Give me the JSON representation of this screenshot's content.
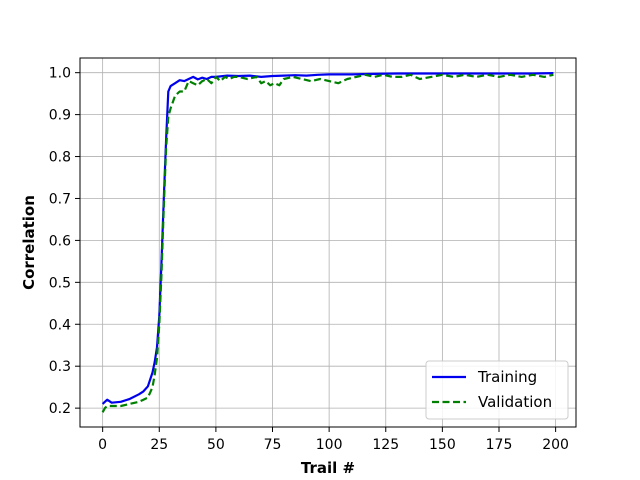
{
  "chart_data": {
    "type": "line",
    "title": "",
    "xlabel": "Trail #",
    "ylabel": "Correlation",
    "xlim": [
      -10,
      209
    ],
    "ylim": [
      0.155,
      1.035
    ],
    "xticks": [
      0,
      25,
      50,
      75,
      100,
      125,
      150,
      175,
      200
    ],
    "yticks": [
      0.2,
      0.3,
      0.4,
      0.5,
      0.6,
      0.7,
      0.8,
      0.9,
      1.0
    ],
    "xtick_labels": [
      "0",
      "25",
      "50",
      "75",
      "100",
      "125",
      "150",
      "175",
      "200"
    ],
    "ytick_labels": [
      "0.2",
      "0.3",
      "0.4",
      "0.5",
      "0.6",
      "0.7",
      "0.8",
      "0.9",
      "1.0"
    ],
    "grid": true,
    "legend": "lower-right",
    "series": [
      {
        "name": "Training",
        "color": "#0000ee",
        "style": "solid",
        "x": [
          0,
          2,
          4,
          8,
          12,
          16,
          18,
          20,
          22,
          23,
          24,
          25,
          26,
          27,
          28,
          29,
          30,
          32,
          34,
          36,
          38,
          40,
          42,
          44,
          46,
          48,
          50,
          55,
          60,
          65,
          70,
          75,
          80,
          85,
          90,
          95,
          100,
          110,
          120,
          130,
          140,
          150,
          160,
          170,
          180,
          190,
          199
        ],
        "y": [
          0.21,
          0.22,
          0.213,
          0.215,
          0.222,
          0.233,
          0.24,
          0.252,
          0.285,
          0.31,
          0.345,
          0.42,
          0.55,
          0.7,
          0.84,
          0.955,
          0.968,
          0.975,
          0.982,
          0.98,
          0.985,
          0.99,
          0.984,
          0.988,
          0.985,
          0.99,
          0.99,
          0.993,
          0.992,
          0.993,
          0.99,
          0.992,
          0.993,
          0.994,
          0.993,
          0.995,
          0.996,
          0.996,
          0.997,
          0.998,
          0.998,
          0.998,
          0.998,
          0.998,
          0.998,
          0.998,
          0.999
        ]
      },
      {
        "name": "Validation",
        "color": "#008000",
        "style": "dashed",
        "x": [
          0,
          1,
          2,
          4,
          8,
          12,
          16,
          18,
          20,
          22,
          23,
          24,
          25,
          26,
          27,
          28,
          29,
          30,
          32,
          34,
          36,
          38,
          40,
          42,
          44,
          46,
          48,
          50,
          52,
          54,
          56,
          58,
          60,
          64,
          68,
          70,
          72,
          74,
          76,
          78,
          80,
          84,
          88,
          92,
          96,
          100,
          104,
          108,
          112,
          116,
          120,
          124,
          128,
          132,
          136,
          140,
          145,
          150,
          155,
          160,
          165,
          170,
          175,
          180,
          185,
          190,
          195,
          199
        ],
        "y": [
          0.19,
          0.2,
          0.205,
          0.205,
          0.205,
          0.21,
          0.215,
          0.22,
          0.225,
          0.25,
          0.28,
          0.32,
          0.4,
          0.52,
          0.68,
          0.82,
          0.895,
          0.915,
          0.945,
          0.955,
          0.955,
          0.98,
          0.975,
          0.97,
          0.98,
          0.985,
          0.975,
          0.99,
          0.98,
          0.99,
          0.985,
          0.99,
          0.99,
          0.985,
          0.99,
          0.975,
          0.98,
          0.97,
          0.975,
          0.97,
          0.985,
          0.99,
          0.985,
          0.98,
          0.985,
          0.98,
          0.975,
          0.985,
          0.99,
          0.995,
          0.99,
          0.995,
          0.99,
          0.99,
          0.995,
          0.985,
          0.99,
          0.995,
          0.99,
          0.995,
          0.99,
          0.995,
          0.99,
          0.995,
          0.99,
          0.995,
          0.99,
          0.995
        ]
      }
    ]
  }
}
